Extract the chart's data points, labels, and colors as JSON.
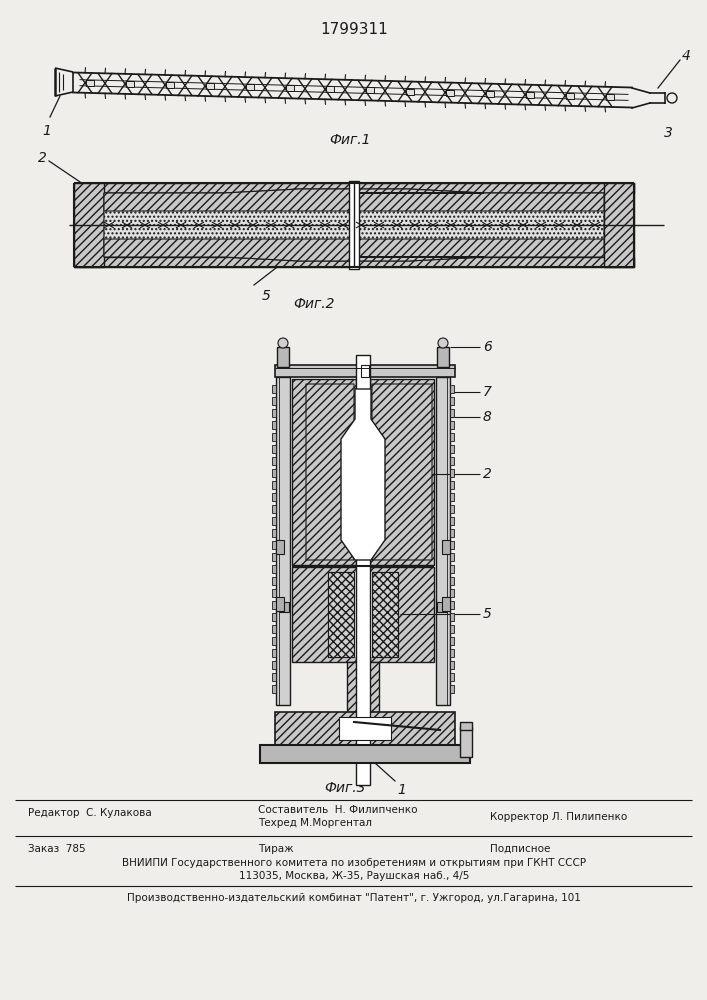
{
  "patent_number": "1799311",
  "bg_color": "#f0eeeb",
  "fig1_caption": "Фиг.1",
  "fig2_caption": "Фиг.2",
  "fig3_caption": "Фиг.3",
  "footer_line1_left": "Редактор  С. Кулакова",
  "footer_line1_center1": "Составитель  Н. Филипченко",
  "footer_line1_center2": "Техред М.Моргентал",
  "footer_line1_right": "Корректор Л. Пилипенко",
  "footer_line2_left": "Заказ  785",
  "footer_line2_center": "Тираж",
  "footer_line2_right": "Подписное",
  "footer_line3": "ВНИИПИ Государственного комитета по изобретениям и открытиям при ГКНТ СССР",
  "footer_line4": "113035, Москва, Ж-35, Раушская наб., 4/5",
  "footer_line5": "Производственно-издательский комбинат \"Патент\", г. Ужгород, ул.Гагарина, 101",
  "text_color": "#1a1a1a",
  "line_color": "#1a1a1a",
  "hatch_color": "#333333",
  "white": "#ffffff",
  "light_gray": "#d8d8d8",
  "mid_gray": "#c0c0c0",
  "dark_gray": "#888888"
}
